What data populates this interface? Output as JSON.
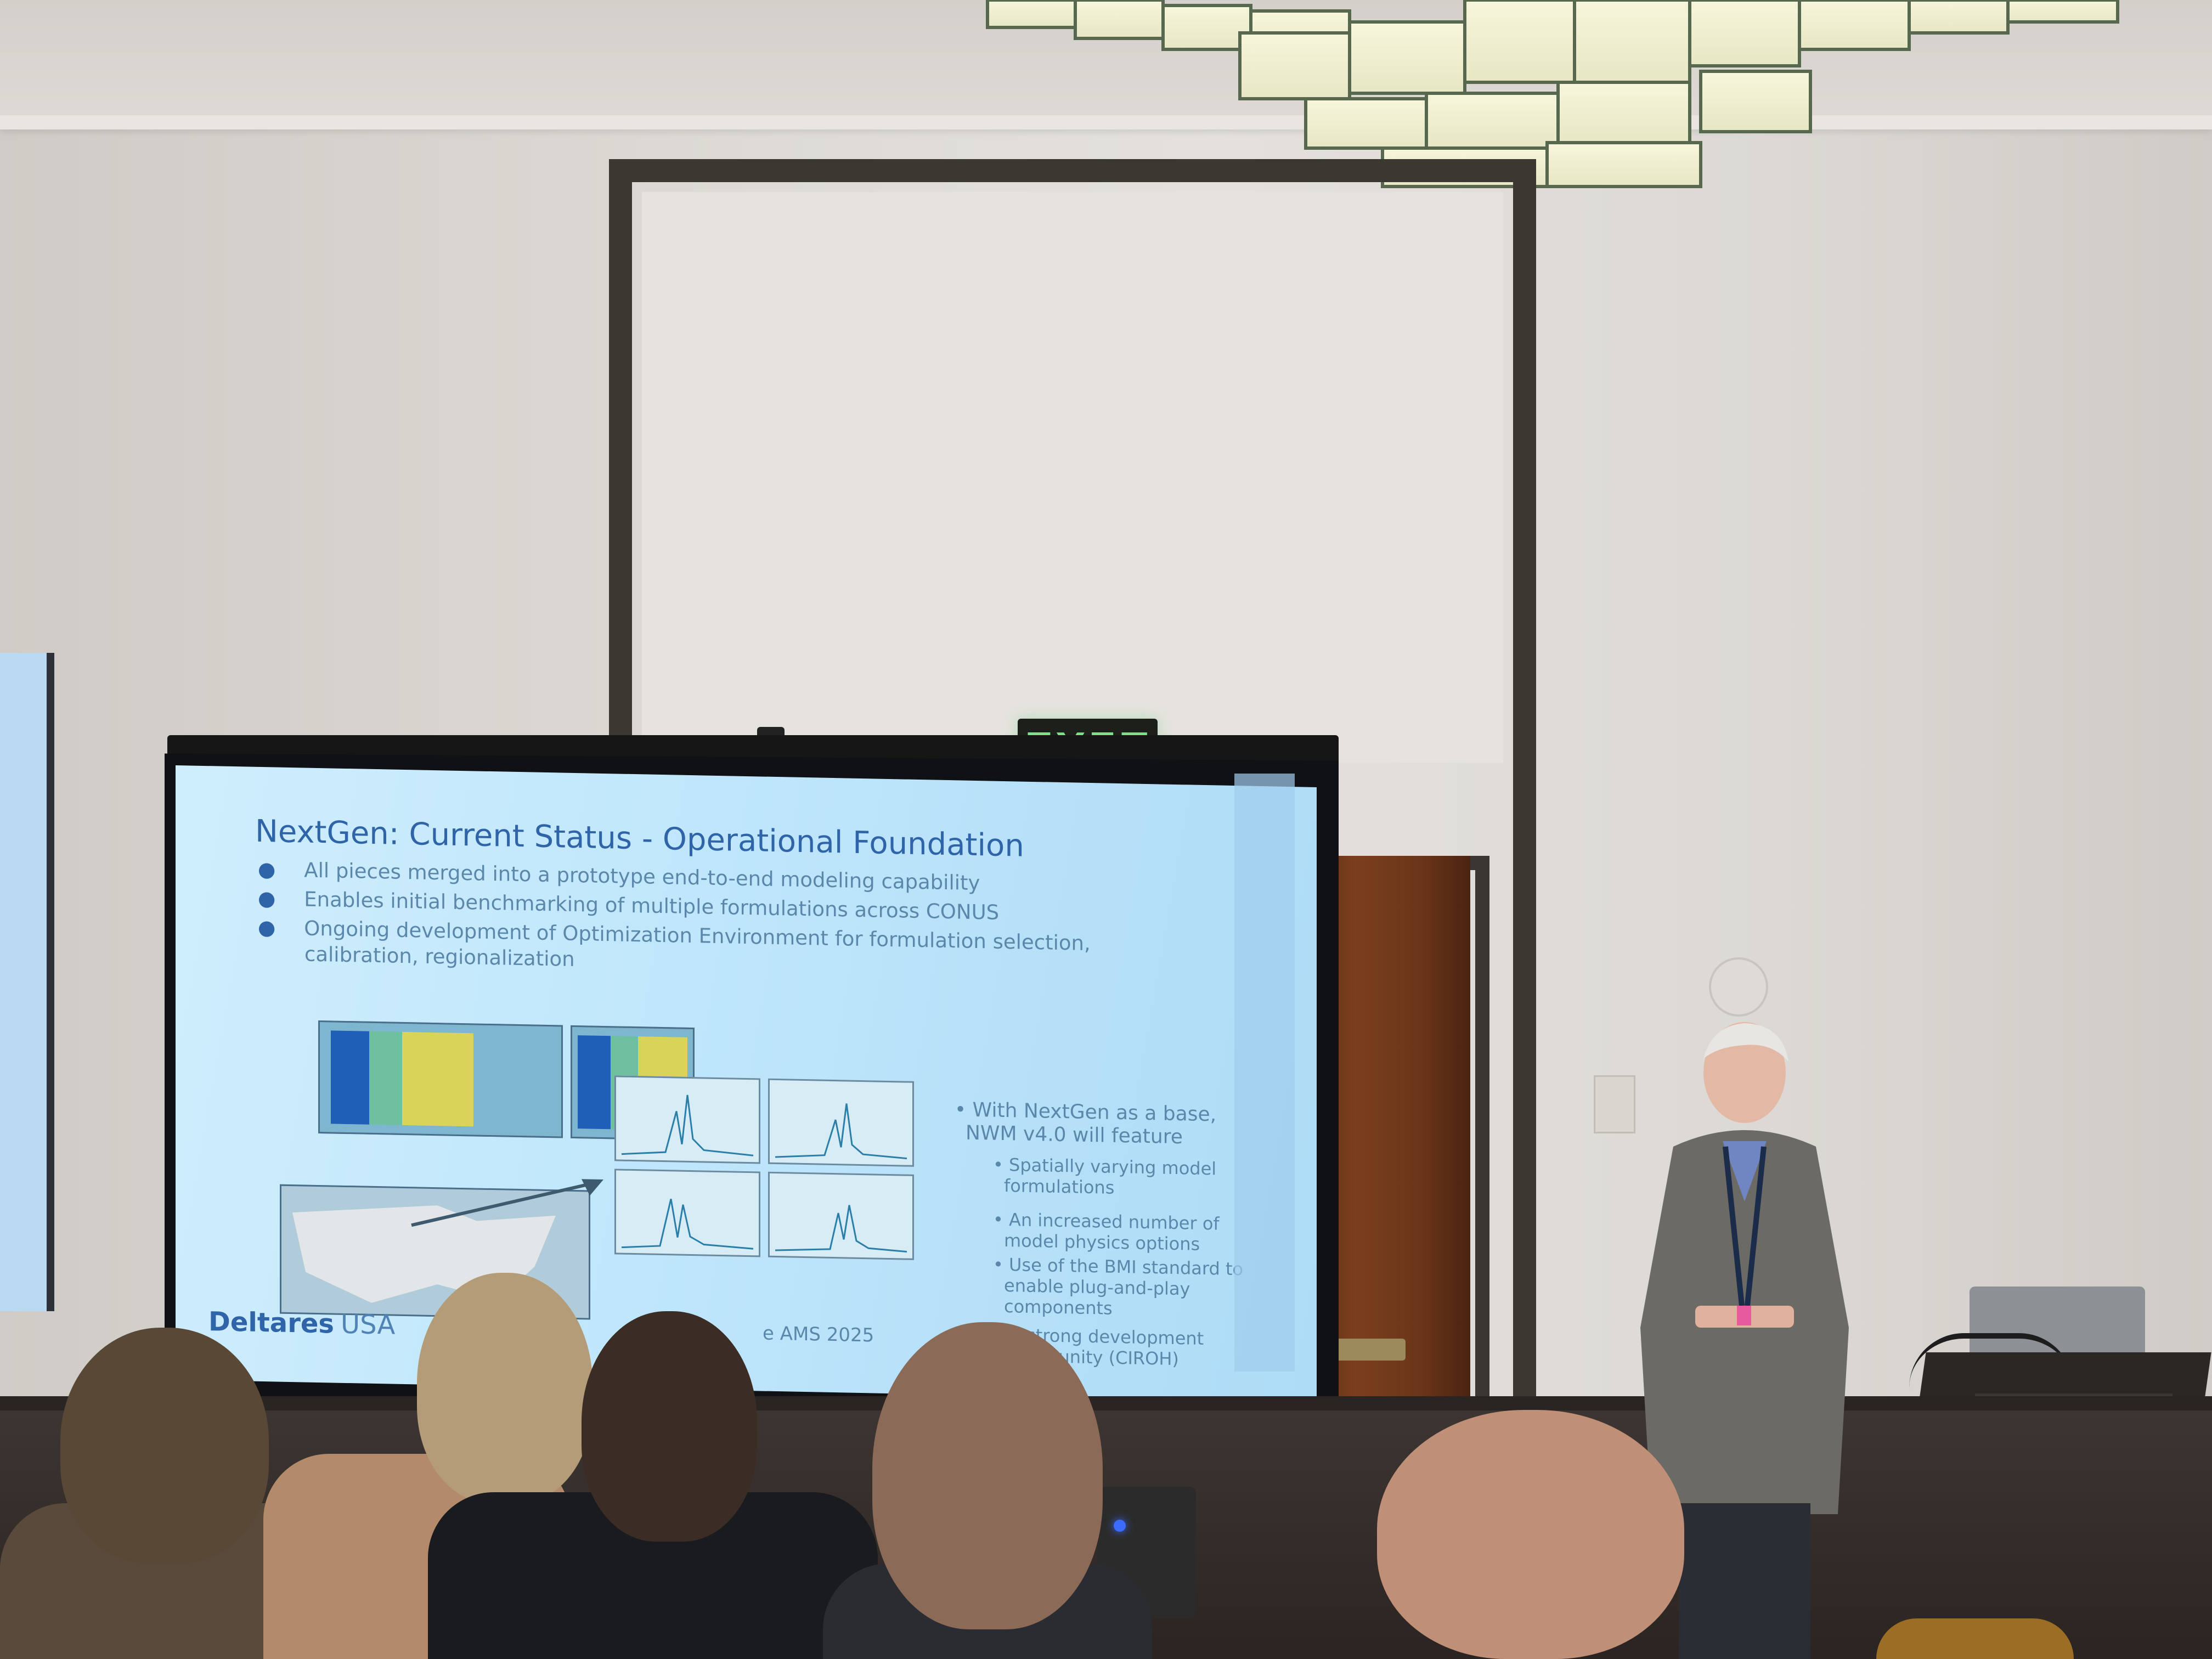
{
  "scene": {
    "exit_sign_text": "EXIT"
  },
  "slide": {
    "title": "NextGen: Current Status - Operational Foundation",
    "bullets": [
      "All pieces merged into a prototype end-to-end modeling capability",
      "Enables initial benchmarking of multiple formulations across CONUS",
      "Ongoing development of Optimization Environment for formulation selection,"
    ],
    "bullet_continuation": "calibration, regionalization",
    "right_heading_line1": "• With NextGen as a base,",
    "right_heading_line2": "NWM v4.0 will feature",
    "right_items": [
      [
        "Spatially varying model",
        "formulations"
      ],
      [
        "An increased number of",
        "model physics options"
      ],
      [
        "Use of the BMI standard to",
        "enable plug-and-play",
        "components"
      ],
      [
        "A strong development",
        "community (CIROH)"
      ]
    ],
    "logo_main": "Deltares",
    "logo_suffix": "USA",
    "footer": "e AMS 2025"
  },
  "colors": {
    "slide_title": "#2f64a8",
    "slide_text": "#5b88aa",
    "exit_green": "#7ee28f",
    "wood_door": "#7b3f1e"
  },
  "icons": {
    "bullet": "dot",
    "projector_led": "blue-led"
  }
}
